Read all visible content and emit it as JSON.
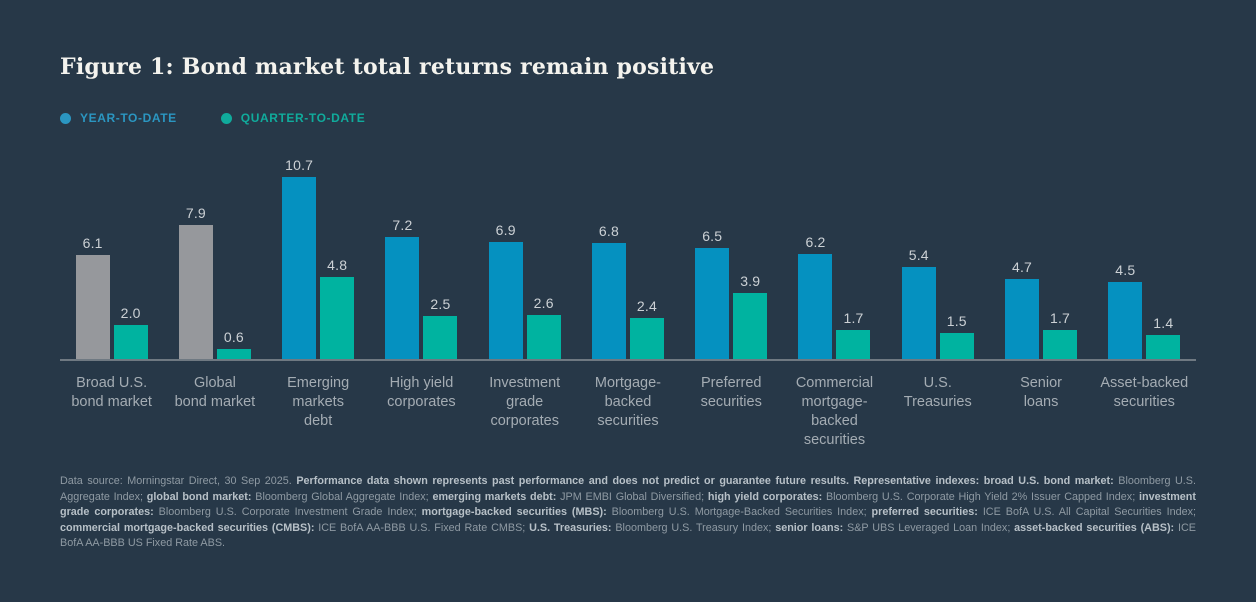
{
  "title": "Figure 1: Bond market total returns remain positive",
  "legend": {
    "items": [
      {
        "id": "year-to-date",
        "label": "YEAR-TO-DATE",
        "color": "#2b96c1"
      },
      {
        "id": "quarter-to-date",
        "label": "QUARTER-TO-DATE",
        "color": "#10ab9c"
      }
    ]
  },
  "chart_data": {
    "type": "bar",
    "title": "Figure 1: Bond market total returns remain positive",
    "categories": [
      "Broad U.S.\nbond market",
      "Global\nbond market",
      "Emerging\nmarkets\ndebt",
      "High yield\ncorporates",
      "Investment\ngrade\ncorporates",
      "Mortgage-\nbacked\nsecurities",
      "Preferred\nsecurities",
      "Commercial\nmortgage-\nbacked\nsecurities",
      "U.S.\nTreasuries",
      "Senior\nloans",
      "Asset-backed\nsecurities"
    ],
    "series": [
      {
        "name": "YEAR-TO-DATE",
        "values": [
          6.1,
          7.9,
          10.7,
          7.2,
          6.9,
          6.8,
          6.5,
          6.2,
          5.4,
          4.7,
          4.5
        ],
        "bar_colors": [
          "gray",
          "gray",
          "blue",
          "blue",
          "blue",
          "blue",
          "blue",
          "blue",
          "blue",
          "blue",
          "blue"
        ]
      },
      {
        "name": "QUARTER-TO-DATE",
        "values": [
          2.0,
          0.6,
          4.8,
          2.5,
          2.6,
          2.4,
          3.9,
          1.7,
          1.5,
          1.7,
          1.4
        ],
        "bar_colors": [
          "teal",
          "teal",
          "teal",
          "teal",
          "teal",
          "teal",
          "teal",
          "teal",
          "teal",
          "teal",
          "teal"
        ]
      }
    ],
    "palette": {
      "blue": "#0591c0",
      "teal": "#00b3a0",
      "gray": "#96989c"
    },
    "value_labels": true,
    "value_label_format": "one-decimal",
    "xlabel": "",
    "ylabel": "",
    "ylim": [
      0,
      12.6
    ],
    "grid": false,
    "y_axis_visible": false,
    "legend_position": "top-left"
  },
  "footnote": {
    "segments": [
      {
        "bold": false,
        "text": "Data source: Morningstar Direct, 30 Sep 2025. "
      },
      {
        "bold": true,
        "text": "Performance data shown represents past performance and does not predict or guarantee future results. Representative indexes: broad U.S. bond market: "
      },
      {
        "bold": false,
        "text": "Bloomberg U.S. Aggregate Index; "
      },
      {
        "bold": true,
        "text": "global bond market: "
      },
      {
        "bold": false,
        "text": "Bloomberg Global Aggregate Index; "
      },
      {
        "bold": true,
        "text": "emerging markets debt: "
      },
      {
        "bold": false,
        "text": "JPM EMBI Global Diversified; "
      },
      {
        "bold": true,
        "text": "high yield corporates: "
      },
      {
        "bold": false,
        "text": "Bloomberg U.S. Corporate High Yield 2% Issuer Capped Index; "
      },
      {
        "bold": true,
        "text": "investment grade corporates: "
      },
      {
        "bold": false,
        "text": "Bloomberg U.S. Corporate Investment Grade Index; "
      },
      {
        "bold": true,
        "text": "mortgage-backed securities (MBS): "
      },
      {
        "bold": false,
        "text": "Bloomberg U.S. Mortgage-Backed Securities Index; "
      },
      {
        "bold": true,
        "text": "preferred securities: "
      },
      {
        "bold": false,
        "text": "ICE BofA U.S. All Capital Securities Index; "
      },
      {
        "bold": true,
        "text": "commercial mortgage-backed securities (CMBS): "
      },
      {
        "bold": false,
        "text": "ICE BofA AA-BBB U.S. Fixed Rate CMBS; "
      },
      {
        "bold": true,
        "text": "U.S. Treasuries: "
      },
      {
        "bold": false,
        "text": "Bloomberg U.S. Treasury Index; "
      },
      {
        "bold": true,
        "text": "senior loans: "
      },
      {
        "bold": false,
        "text": "S&P UBS Leveraged Loan Index; "
      },
      {
        "bold": true,
        "text": "asset-backed securities (ABS): "
      },
      {
        "bold": false,
        "text": "ICE BofA AA-BBB US Fixed Rate ABS."
      }
    ]
  }
}
